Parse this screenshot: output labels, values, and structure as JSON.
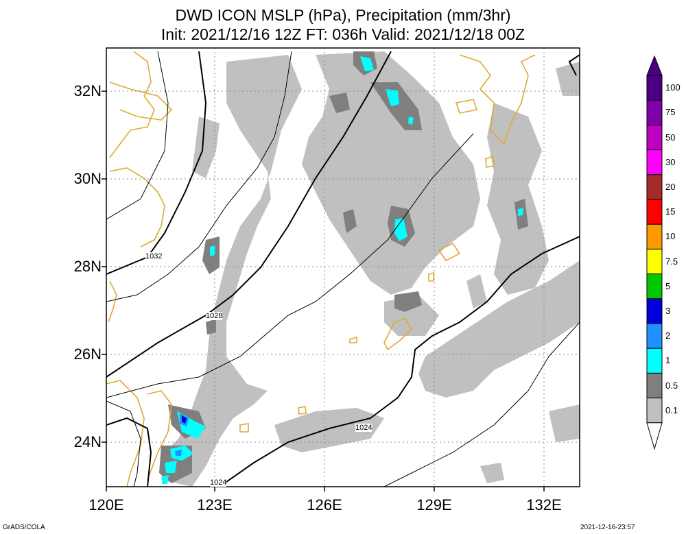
{
  "title": {
    "line1": "DWD ICON MSLP (hPa), Precipitation (mm/3hr)",
    "line2": "Init: 2021/12/16 12Z  FT: 036h  Valid: 2021/12/18 00Z"
  },
  "axes": {
    "y_labels": [
      "32N",
      "30N",
      "28N",
      "26N",
      "24N"
    ],
    "x_labels": [
      "120E",
      "123E",
      "126E",
      "129E",
      "132E"
    ]
  },
  "contour_labels": [
    "1032",
    "1028",
    "1024",
    "1024"
  ],
  "colorbar": {
    "labels": [
      "100",
      "75",
      "50",
      "30",
      "20",
      "15",
      "10",
      "7.5",
      "5",
      "3",
      "2",
      "1",
      "0.5",
      "0.1"
    ],
    "colors": [
      "#4b0082",
      "#7f00a8",
      "#c000c0",
      "#ff00ff",
      "#a52a2a",
      "#ff0000",
      "#ff9900",
      "#ffff00",
      "#00c800",
      "#0000dd",
      "#1e90ff",
      "#00ffff",
      "#7f7f7f",
      "#c0c0c0"
    ]
  },
  "footer": {
    "left": "GrADS/COLA",
    "right": "2021-12-16-23:57"
  }
}
